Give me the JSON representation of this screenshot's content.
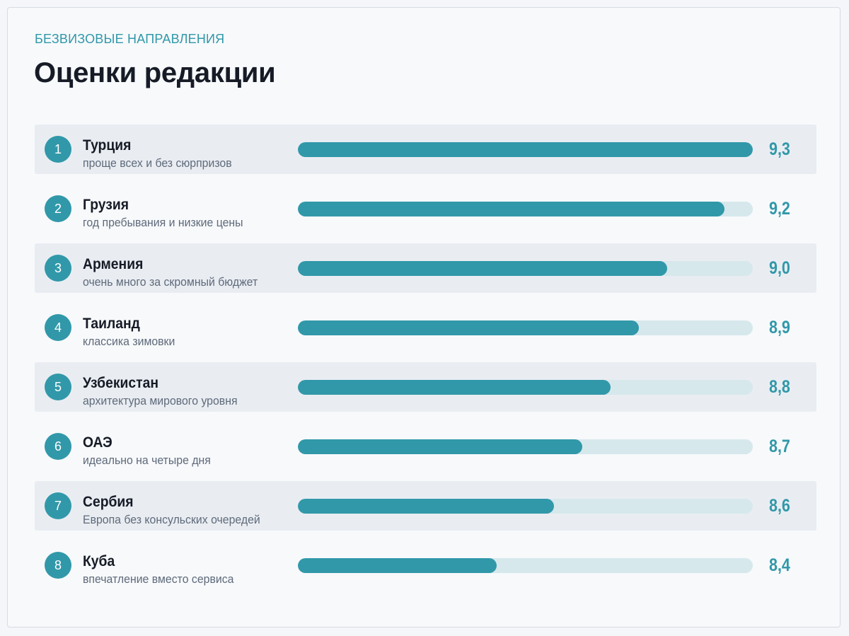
{
  "header": {
    "kicker": "БЕЗВИЗОВЫЕ НАПРАВЛЕНИЯ",
    "title": "Оценки редакции"
  },
  "colors": {
    "accent": "#3198a9",
    "track": "#d6e8ec",
    "row_shade": "#e9edf2"
  },
  "chart_data": {
    "type": "bar",
    "orientation": "horizontal",
    "title": "Оценки редакции",
    "decimal_separator": ",",
    "grid": false,
    "categories": [
      "Турция",
      "Грузия",
      "Армения",
      "Таиланд",
      "Узбекистан",
      "ОАЭ",
      "Сербия",
      "Куба"
    ],
    "values": [
      9.3,
      9.2,
      9.0,
      8.9,
      8.8,
      8.7,
      8.6,
      8.4
    ],
    "value_labels": [
      "9,3",
      "9,2",
      "9,0",
      "8,9",
      "8,8",
      "8,7",
      "8,6",
      "8,4"
    ],
    "ranks": [
      "1",
      "2",
      "3",
      "4",
      "5",
      "6",
      "7",
      "8"
    ],
    "annotations": [
      "проще всех и без сюрпризов",
      "год пребывания и низкие цены",
      "очень много за скромный бюджет",
      "классика зимовки",
      "архитектура мирового уровня",
      "идеально на четыре дня",
      "Европа без консульских очередей",
      "впечатление вместо сервиса"
    ],
    "xlim": [
      7.7,
      9.3
    ]
  }
}
